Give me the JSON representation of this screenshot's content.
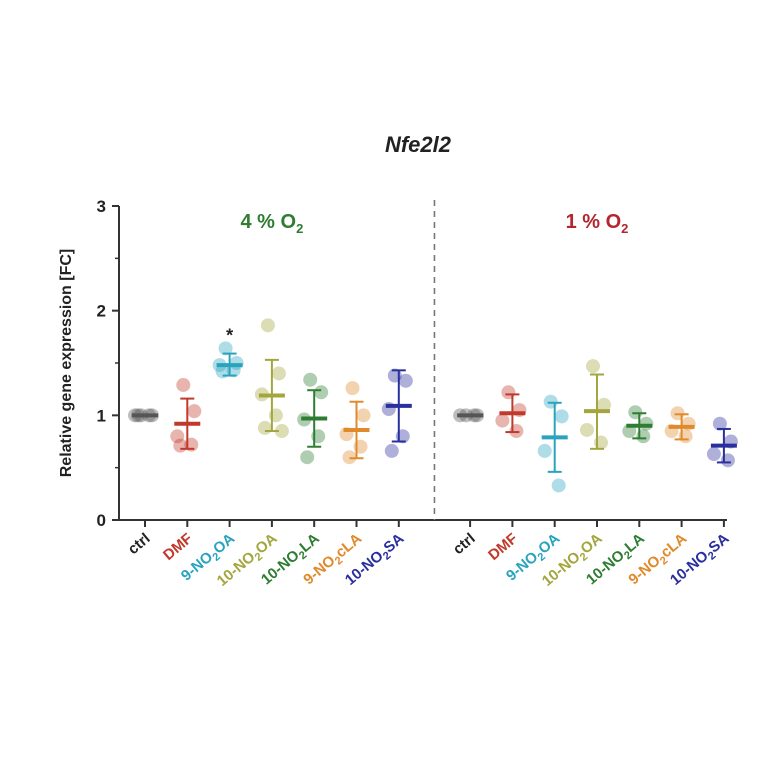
{
  "chart_data": {
    "type": "scatter",
    "title": "Nfe2l2",
    "ylabel": "Relative gene expression [FC]",
    "ylim": [
      0,
      3
    ],
    "yticks": [
      "0",
      "1",
      "2",
      "3"
    ],
    "panels": [
      {
        "label": "4 % O",
        "label_sub": "2",
        "label_color": "#2e7d32",
        "groups": [
          {
            "name": "ctrl",
            "color": "#555555",
            "mean": 1.0,
            "sd_low": 1.0,
            "sd_high": 1.0,
            "points": [
              1.0,
              1.0,
              1.0,
              1.0,
              1.0
            ]
          },
          {
            "name": "DMF",
            "color": "#c0392b",
            "mean": 0.92,
            "sd_low": 0.68,
            "sd_high": 1.16,
            "points": [
              1.29,
              1.04,
              0.8,
              0.72,
              0.71
            ]
          },
          {
            "name": "9-NO2OA",
            "color": "#2aa3bf",
            "mean": 1.48,
            "sd_low": 1.38,
            "sd_high": 1.59,
            "points": [
              1.64,
              1.5,
              1.48,
              1.43,
              1.42
            ],
            "annotation": "*"
          },
          {
            "name": "10-NO2OA",
            "color": "#a3a63c",
            "mean": 1.19,
            "sd_low": 0.85,
            "sd_high": 1.53,
            "points": [
              1.86,
              1.4,
              1.2,
              1.0,
              0.88,
              0.85
            ]
          },
          {
            "name": "10-NO2LA",
            "color": "#2e7d32",
            "mean": 0.97,
            "sd_low": 0.7,
            "sd_high": 1.24,
            "points": [
              1.34,
              1.22,
              0.96,
              0.8,
              0.6
            ]
          },
          {
            "name": "9-NO2cLA",
            "color": "#e08a2c",
            "mean": 0.86,
            "sd_low": 0.59,
            "sd_high": 1.13,
            "points": [
              1.26,
              1.0,
              0.82,
              0.7,
              0.6
            ]
          },
          {
            "name": "10-NO2SA",
            "color": "#2a2f9e",
            "mean": 1.09,
            "sd_low": 0.75,
            "sd_high": 1.43,
            "points": [
              1.38,
              1.33,
              1.06,
              0.8,
              0.66
            ]
          }
        ]
      },
      {
        "label": "1 % O",
        "label_sub": "2",
        "label_color": "#b3262e",
        "groups": [
          {
            "name": "ctrl",
            "color": "#555555",
            "mean": 1.0,
            "sd_low": 1.0,
            "sd_high": 1.0,
            "points": [
              1.0,
              1.0,
              1.0,
              1.0
            ]
          },
          {
            "name": "DMF",
            "color": "#c0392b",
            "mean": 1.02,
            "sd_low": 0.84,
            "sd_high": 1.2,
            "points": [
              1.22,
              1.05,
              0.95,
              0.85
            ]
          },
          {
            "name": "9-NO2OA",
            "color": "#2aa3bf",
            "mean": 0.79,
            "sd_low": 0.46,
            "sd_high": 1.12,
            "points": [
              1.13,
              0.99,
              0.66,
              0.33
            ]
          },
          {
            "name": "10-NO2OA",
            "color": "#a3a63c",
            "mean": 1.04,
            "sd_low": 0.68,
            "sd_high": 1.39,
            "points": [
              1.47,
              1.1,
              0.86,
              0.74
            ]
          },
          {
            "name": "10-NO2LA",
            "color": "#2e7d32",
            "mean": 0.9,
            "sd_low": 0.78,
            "sd_high": 1.02,
            "points": [
              1.03,
              0.92,
              0.85,
              0.8
            ]
          },
          {
            "name": "9-NO2cLA",
            "color": "#e08a2c",
            "mean": 0.89,
            "sd_low": 0.77,
            "sd_high": 1.01,
            "points": [
              1.02,
              0.92,
              0.85,
              0.8
            ]
          },
          {
            "name": "10-NO2SA",
            "color": "#2a2f9e",
            "mean": 0.71,
            "sd_low": 0.55,
            "sd_high": 0.87,
            "points": [
              0.92,
              0.75,
              0.63,
              0.57
            ]
          }
        ]
      }
    ],
    "grid": false,
    "divider": "dashed vertical line between the two panels"
  }
}
